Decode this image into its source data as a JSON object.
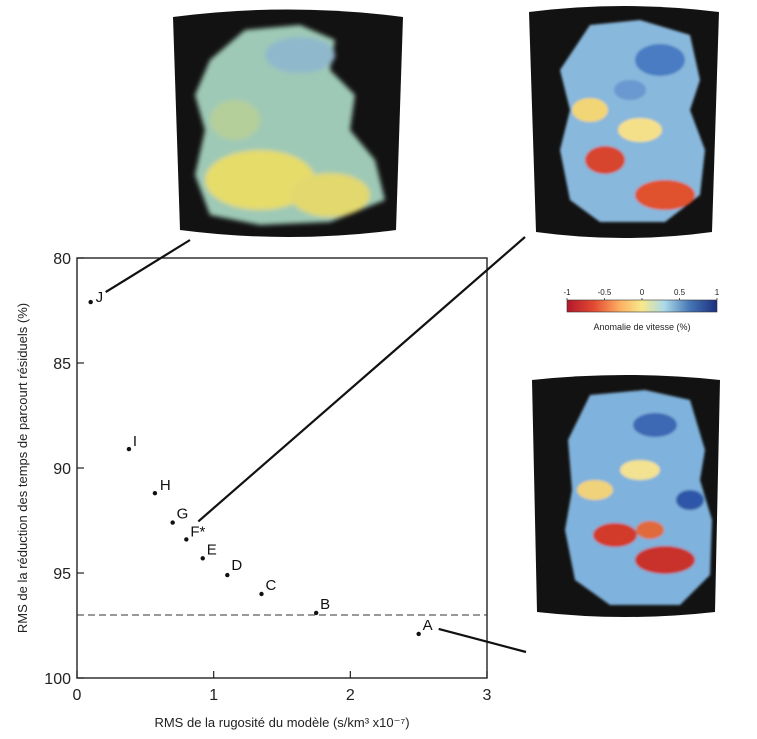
{
  "chart_data": {
    "type": "scatter",
    "xlabel": "RMS de la rugosité du modèle (s/km³ x10⁻⁷)",
    "ylabel": "RMS de la réduction des temps de parcourt résiduels (%)",
    "xlim": [
      0,
      3
    ],
    "ylim": [
      100,
      80
    ],
    "y_inverted": true,
    "xticks": [
      "0",
      "1",
      "2",
      "3"
    ],
    "yticks": [
      "80",
      "85",
      "90",
      "95",
      "100"
    ],
    "grid": false,
    "reference_line": {
      "y": 97,
      "style": "dashed"
    },
    "points": [
      {
        "label": "J",
        "x": 0.1,
        "y": 82.1
      },
      {
        "label": "I",
        "x": 0.38,
        "y": 89.1
      },
      {
        "label": "H",
        "x": 0.57,
        "y": 91.2
      },
      {
        "label": "G",
        "x": 0.7,
        "y": 92.6
      },
      {
        "label": "F*",
        "x": 0.8,
        "y": 93.4
      },
      {
        "label": "E",
        "x": 0.92,
        "y": 94.3
      },
      {
        "label": "D",
        "x": 1.1,
        "y": 95.1
      },
      {
        "label": "C",
        "x": 1.35,
        "y": 96.0
      },
      {
        "label": "B",
        "x": 1.75,
        "y": 96.9
      },
      {
        "label": "A",
        "x": 2.5,
        "y": 97.9
      }
    ],
    "insets": [
      {
        "link_to": "J",
        "style": "smooth"
      },
      {
        "link_to": "F*",
        "style": "medium"
      },
      {
        "link_to": "A",
        "style": "rough"
      }
    ],
    "colorbar": {
      "title": "Anomalie de vitesse (%)",
      "ticks": [
        "-1",
        "-0.5",
        "0",
        "0.5",
        "1"
      ],
      "colors": [
        "#b2182b",
        "#e34a33",
        "#fdae61",
        "#f7e98c",
        "#abd9e9",
        "#4575b4",
        "#1b2f80"
      ]
    }
  }
}
